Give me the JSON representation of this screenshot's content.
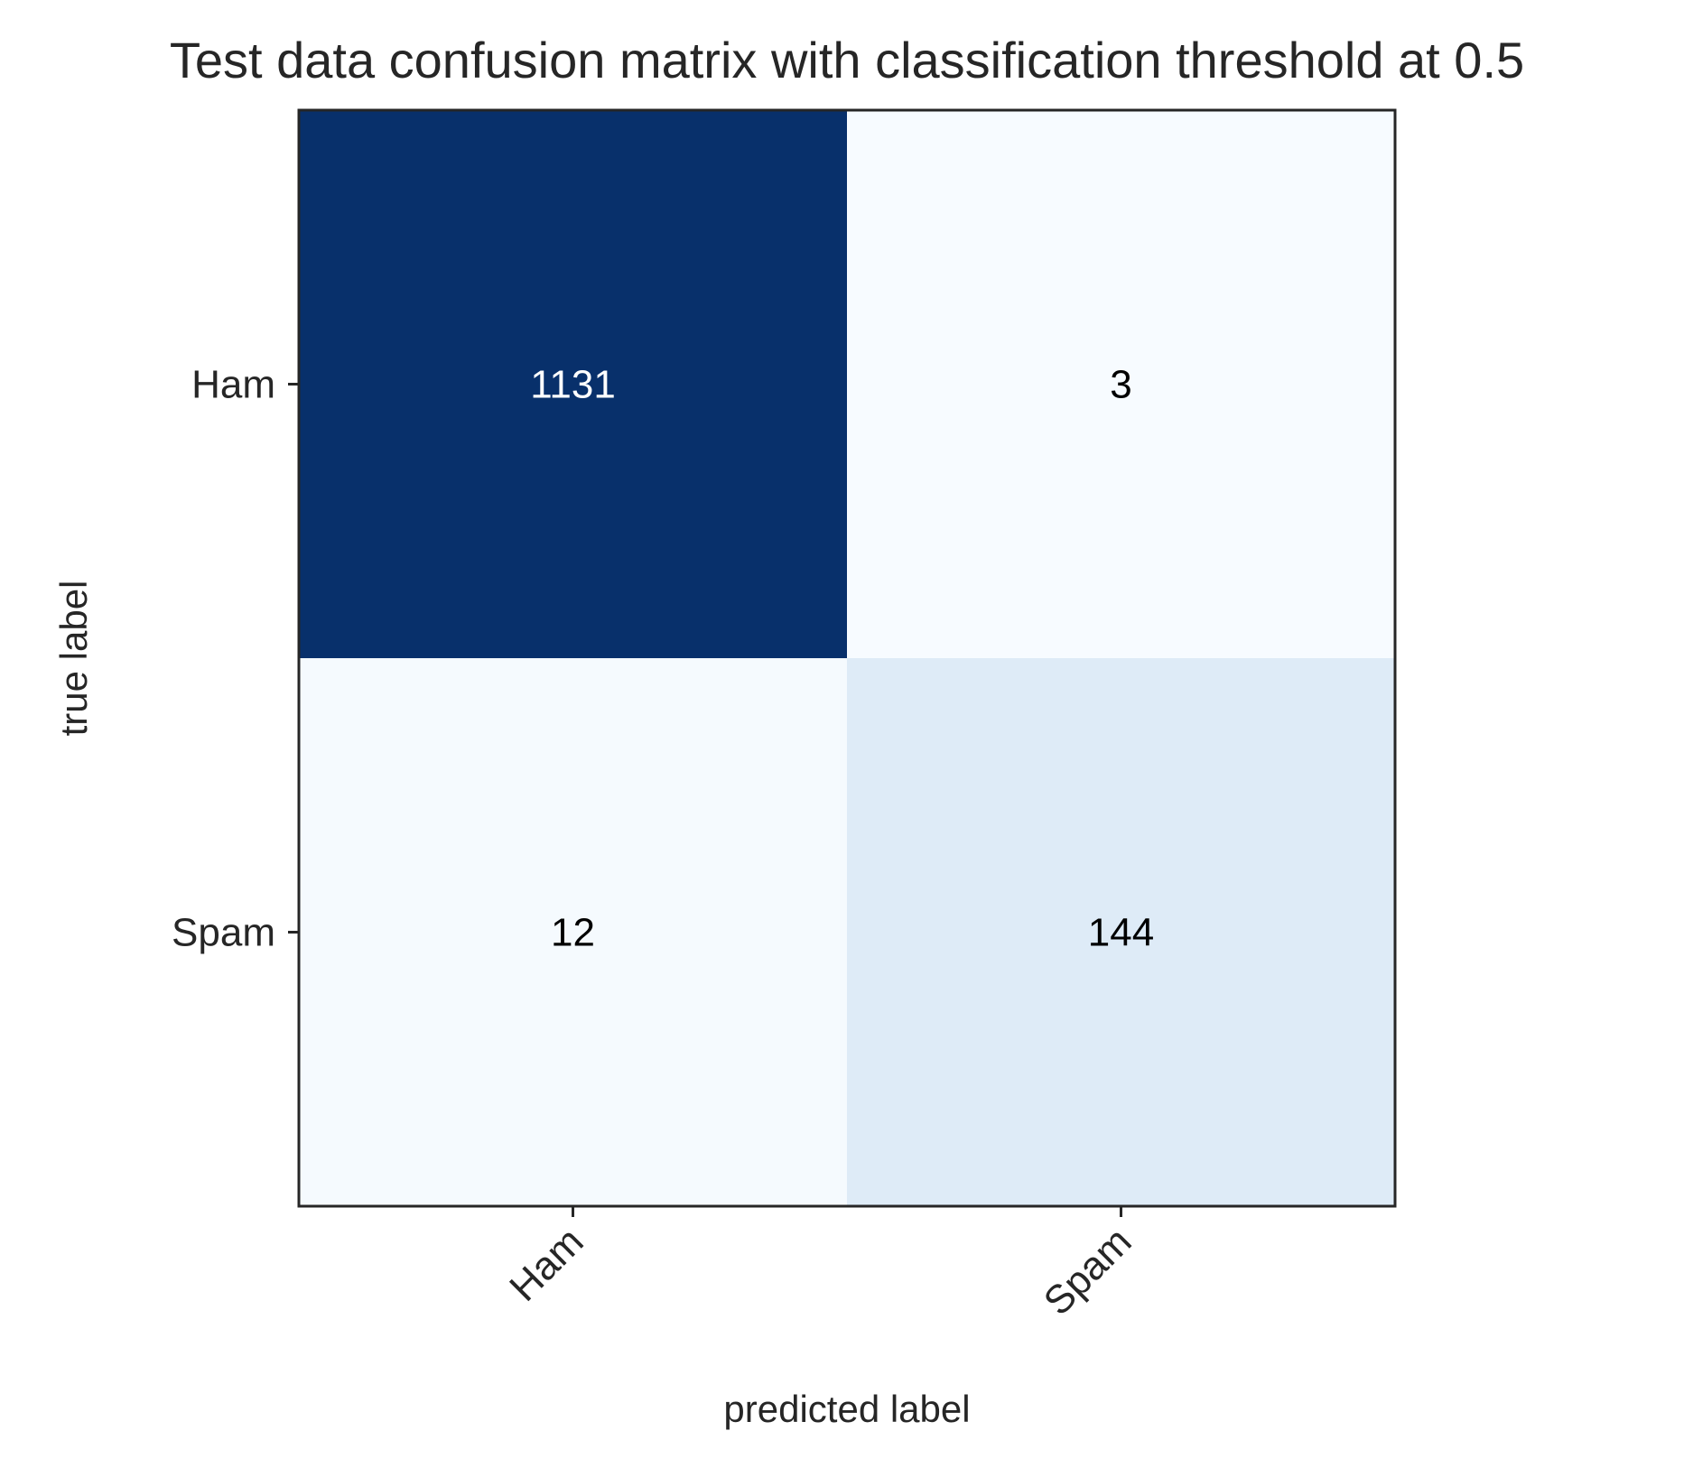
{
  "chart_data": {
    "type": "heatmap",
    "title": "Test data confusion matrix with classification threshold at 0.5",
    "xlabel": "predicted label",
    "ylabel": "true label",
    "x_categories": [
      "Ham",
      "Spam"
    ],
    "y_categories": [
      "Ham",
      "Spam"
    ],
    "values": [
      [
        1131,
        3
      ],
      [
        12,
        144
      ]
    ],
    "colormap": "Blues",
    "colors": {
      "dark": "#08306b",
      "cell_text_dark": "#000000",
      "cell_text_light": "#ffffff",
      "axes": "#262626",
      "label_text": "#262626"
    },
    "grid": false
  }
}
